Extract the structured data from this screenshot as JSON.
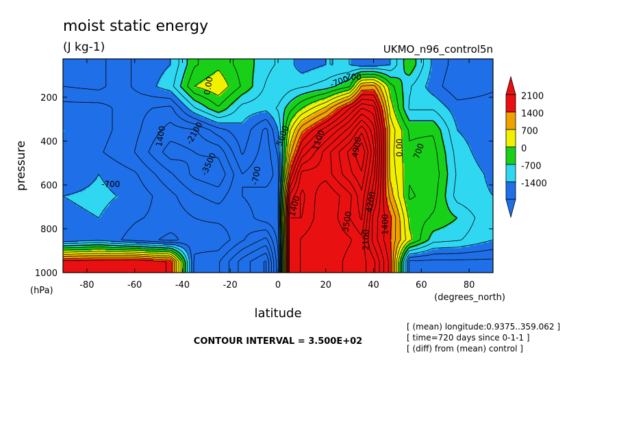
{
  "chart_data": {
    "type": "heatmap",
    "title": "moist static energy",
    "units": "(J kg-1)",
    "run_label": "UKMO_n96_control5n",
    "xlabel": "latitude",
    "x_units": "(degrees_north)",
    "y_title": "pressure",
    "y_units": "(hPa)",
    "xlim": [
      -90,
      90
    ],
    "ylim": [
      1000,
      25
    ],
    "y_inverted": true,
    "x_ticks": [
      "-80",
      "-60",
      "-40",
      "-20",
      "0",
      "20",
      "40",
      "60",
      "80"
    ],
    "x_tick_values": [
      -80,
      -60,
      -40,
      -20,
      0,
      20,
      40,
      60,
      80
    ],
    "y_ticks": [
      "200",
      "400",
      "600",
      "800",
      "1000"
    ],
    "y_tick_values": [
      200,
      400,
      600,
      800,
      1000
    ],
    "colorbar": {
      "labels": [
        "2100",
        "1400",
        "700",
        "0",
        "-700",
        "-1400"
      ],
      "levels": [
        -1400,
        -700,
        0,
        700,
        1400,
        2100
      ],
      "colors": [
        "#1f6fe8",
        "#2fd8f0",
        "#18d018",
        "#f0f000",
        "#f0a000",
        "#e81010"
      ]
    },
    "contour_interval_text": "CONTOUR INTERVAL = 3.500E+02",
    "contour_labels": [
      "700",
      "-700",
      "0.00",
      "1400",
      "-2100",
      "-3500",
      "5600",
      "1400",
      "4900",
      "1100",
      "0.00",
      "-700",
      "700",
      "-700",
      "3500",
      "2100",
      "1400",
      "4200",
      "-700"
    ],
    "annotations": [
      "[ (mean) longitude:0.9375..359.062 ]",
      "[ time=720 days since 0-1-1 ]",
      "[ (diff) from (mean) control ]"
    ],
    "field_values_J_per_kg": {
      "x": [
        -90,
        -75,
        -60,
        -45,
        -35,
        -25,
        -15,
        -5,
        0,
        5,
        10,
        20,
        30,
        35,
        40,
        47,
        55,
        65,
        75,
        90
      ],
      "y": [
        50,
        150,
        250,
        350,
        450,
        550,
        650,
        750,
        850,
        950
      ],
      "z": [
        [
          -1400,
          -1500,
          -1000,
          -700,
          300,
          600,
          200,
          -200,
          -400,
          -600,
          -900,
          -700,
          -700,
          -900,
          -900,
          -700,
          300,
          -800,
          -1200,
          -1200
        ],
        [
          -1400,
          -1500,
          -1000,
          -500,
          700,
          1000,
          300,
          -400,
          -700,
          -500,
          -400,
          -200,
          300,
          1800,
          1900,
          500,
          -300,
          -900,
          -1300,
          -1100
        ],
        [
          -900,
          -900,
          -1300,
          -1500,
          -400,
          300,
          -500,
          -600,
          -300,
          200,
          700,
          1500,
          2800,
          3500,
          3300,
          900,
          -400,
          -400,
          -900,
          -900
        ],
        [
          -700,
          -900,
          -1300,
          -1900,
          -1800,
          -1200,
          -800,
          -1500,
          -700,
          1000,
          2000,
          3000,
          4000,
          4800,
          4000,
          1300,
          300,
          300,
          -700,
          -1000
        ],
        [
          -800,
          -1000,
          -1400,
          -2300,
          -2100,
          -2000,
          -1000,
          -1600,
          -1000,
          1600,
          2900,
          4000,
          5000,
          5600,
          4300,
          1200,
          400,
          500,
          -500,
          -1000
        ],
        [
          -1000,
          -700,
          -1000,
          -1700,
          -2200,
          -2400,
          -1400,
          -1700,
          -1200,
          2500,
          4000,
          4000,
          4800,
          5200,
          4000,
          1300,
          400,
          600,
          -400,
          -800
        ],
        [
          -700,
          -600,
          -800,
          -1300,
          -1700,
          -1900,
          -1400,
          -1200,
          -1100,
          3600,
          4300,
          3500,
          4100,
          4800,
          3600,
          1600,
          300,
          500,
          -500,
          -700
        ],
        [
          -800,
          -700,
          -1000,
          -1200,
          -1400,
          -1500,
          -1600,
          -1200,
          -1100,
          4200,
          4200,
          3500,
          4200,
          4600,
          3000,
          2200,
          600,
          300,
          0,
          -700
        ],
        [
          -1000,
          -800,
          -1200,
          -1500,
          -1200,
          -1100,
          -1700,
          -2200,
          -1300,
          4200,
          3800,
          3500,
          3800,
          4100,
          3000,
          2100,
          800,
          -200,
          -300,
          -700
        ],
        [
          2600,
          2700,
          2800,
          2400,
          -1500,
          -1700,
          -2600,
          -3200,
          -1500,
          4200,
          3800,
          3500,
          4000,
          4000,
          3600,
          2300,
          -1500,
          -1500,
          -1500,
          -1500
        ]
      ]
    }
  }
}
